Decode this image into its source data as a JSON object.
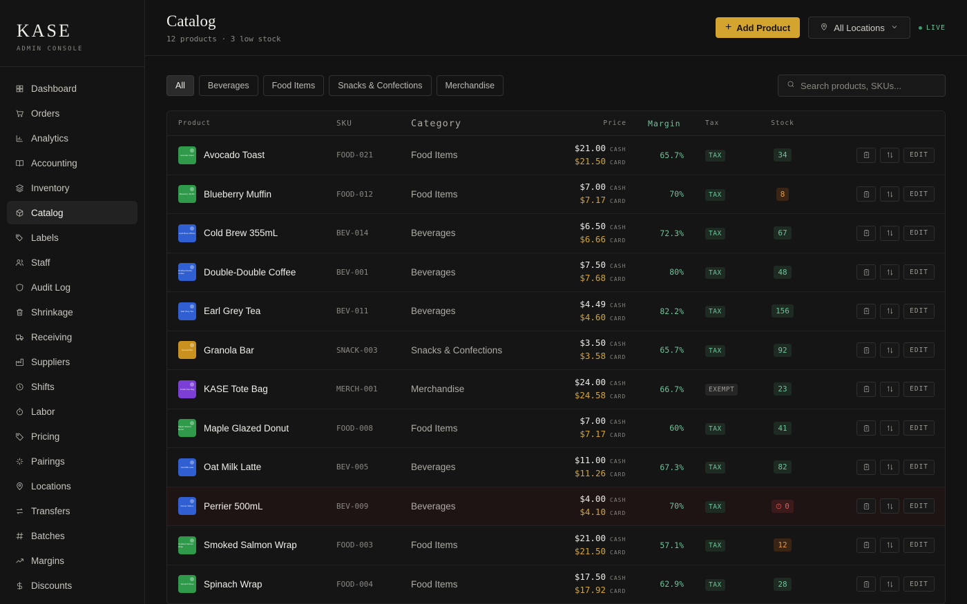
{
  "brand": {
    "name": "KASE",
    "sub": "ADMIN CONSOLE"
  },
  "nav": [
    {
      "label": "Dashboard",
      "icon": "grid-icon",
      "active": false
    },
    {
      "label": "Orders",
      "icon": "cart-icon",
      "active": false
    },
    {
      "label": "Analytics",
      "icon": "bar-chart-icon",
      "active": false
    },
    {
      "label": "Accounting",
      "icon": "book-icon",
      "active": false
    },
    {
      "label": "Inventory",
      "icon": "layers-icon",
      "active": false
    },
    {
      "label": "Catalog",
      "icon": "box-icon",
      "active": true
    },
    {
      "label": "Labels",
      "icon": "tags-icon",
      "active": false
    },
    {
      "label": "Staff",
      "icon": "users-icon",
      "active": false
    },
    {
      "label": "Audit Log",
      "icon": "shield-icon",
      "active": false
    },
    {
      "label": "Shrinkage",
      "icon": "trash-icon",
      "active": false
    },
    {
      "label": "Receiving",
      "icon": "truck-icon",
      "active": false
    },
    {
      "label": "Suppliers",
      "icon": "factory-icon",
      "active": false
    },
    {
      "label": "Shifts",
      "icon": "clock-icon",
      "active": false
    },
    {
      "label": "Labor",
      "icon": "timer-icon",
      "active": false
    },
    {
      "label": "Pricing",
      "icon": "tag-icon",
      "active": false
    },
    {
      "label": "Pairings",
      "icon": "sparkle-icon",
      "active": false
    },
    {
      "label": "Locations",
      "icon": "map-pin-icon",
      "active": false
    },
    {
      "label": "Transfers",
      "icon": "transfer-icon",
      "active": false
    },
    {
      "label": "Batches",
      "icon": "hash-icon",
      "active": false
    },
    {
      "label": "Margins",
      "icon": "trend-icon",
      "active": false
    },
    {
      "label": "Discounts",
      "icon": "dollar-icon",
      "active": false
    }
  ],
  "header": {
    "title": "Catalog",
    "subtitle": "12 products · 3 low stock",
    "add_label": "Add Product",
    "location_label": "All Locations",
    "live_label": "LIVE"
  },
  "filters": [
    {
      "label": "All",
      "active": true
    },
    {
      "label": "Beverages",
      "active": false
    },
    {
      "label": "Food Items",
      "active": false
    },
    {
      "label": "Snacks & Confections",
      "active": false
    },
    {
      "label": "Merchandise",
      "active": false
    }
  ],
  "search": {
    "placeholder": "Search products, SKUs..."
  },
  "table": {
    "columns": [
      "Product",
      "SKU",
      "Category",
      "Price",
      "Margin",
      "Tax",
      "Stock"
    ],
    "cash_label": "CASH",
    "card_label": "CARD",
    "edit_label": "EDIT",
    "rows": [
      {
        "name": "Avocado Toast",
        "sku": "FOOD-021",
        "category": "Food Items",
        "cash": "$21.00",
        "card": "$21.50",
        "margin": "65.7%",
        "tax": "TAX",
        "stock": "34",
        "stock_status": "ok",
        "color": "#2e9a4a",
        "thumb": "Avocado Toast"
      },
      {
        "name": "Blueberry Muffin",
        "sku": "FOOD-012",
        "category": "Food Items",
        "cash": "$7.00",
        "card": "$7.17",
        "margin": "70%",
        "tax": "TAX",
        "stock": "8",
        "stock_status": "low",
        "color": "#2e9a4a",
        "thumb": "Blueberry Muffin"
      },
      {
        "name": "Cold Brew 355mL",
        "sku": "BEV-014",
        "category": "Beverages",
        "cash": "$6.50",
        "card": "$6.66",
        "margin": "72.3%",
        "tax": "TAX",
        "stock": "67",
        "stock_status": "ok",
        "color": "#2f5fd0",
        "thumb": "Cold Brew 355mL"
      },
      {
        "name": "Double-Double Coffee",
        "sku": "BEV-001",
        "category": "Beverages",
        "cash": "$7.50",
        "card": "$7.68",
        "margin": "80%",
        "tax": "TAX",
        "stock": "48",
        "stock_status": "ok",
        "color": "#2f5fd0",
        "thumb": "Double-Double Coffee"
      },
      {
        "name": "Earl Grey Tea",
        "sku": "BEV-011",
        "category": "Beverages",
        "cash": "$4.49",
        "card": "$4.60",
        "margin": "82.2%",
        "tax": "TAX",
        "stock": "156",
        "stock_status": "ok",
        "color": "#2f5fd0",
        "thumb": "Earl Grey Tea"
      },
      {
        "name": "Granola Bar",
        "sku": "SNACK-003",
        "category": "Snacks & Confections",
        "cash": "$3.50",
        "card": "$3.58",
        "margin": "65.7%",
        "tax": "TAX",
        "stock": "92",
        "stock_status": "ok",
        "color": "#c9921e",
        "thumb": "Granola Bar"
      },
      {
        "name": "KASE Tote Bag",
        "sku": "MERCH-001",
        "category": "Merchandise",
        "cash": "$24.00",
        "card": "$24.58",
        "margin": "66.7%",
        "tax": "EXEMPT",
        "stock": "23",
        "stock_status": "ok",
        "color": "#7b3fd6",
        "thumb": "KASE Tote Bag"
      },
      {
        "name": "Maple Glazed Donut",
        "sku": "FOOD-008",
        "category": "Food Items",
        "cash": "$7.00",
        "card": "$7.17",
        "margin": "60%",
        "tax": "TAX",
        "stock": "41",
        "stock_status": "ok",
        "color": "#2e9a4a",
        "thumb": "Maple Glazed Donut"
      },
      {
        "name": "Oat Milk Latte",
        "sku": "BEV-005",
        "category": "Beverages",
        "cash": "$11.00",
        "card": "$11.26",
        "margin": "67.3%",
        "tax": "TAX",
        "stock": "82",
        "stock_status": "ok",
        "color": "#2f5fd0",
        "thumb": "Oat Milk Latte"
      },
      {
        "name": "Perrier 500mL",
        "sku": "BEV-009",
        "category": "Beverages",
        "cash": "$4.00",
        "card": "$4.10",
        "margin": "70%",
        "tax": "TAX",
        "stock": "0",
        "stock_status": "out",
        "color": "#2f5fd0",
        "thumb": "Perrier 500mL"
      },
      {
        "name": "Smoked Salmon Wrap",
        "sku": "FOOD-003",
        "category": "Food Items",
        "cash": "$21.00",
        "card": "$21.50",
        "margin": "57.1%",
        "tax": "TAX",
        "stock": "12",
        "stock_status": "low",
        "color": "#2e9a4a",
        "thumb": "Smoked Salmon Wrap"
      },
      {
        "name": "Spinach Wrap",
        "sku": "FOOD-004",
        "category": "Food Items",
        "cash": "$17.50",
        "card": "$17.92",
        "margin": "62.9%",
        "tax": "TAX",
        "stock": "28",
        "stock_status": "ok",
        "color": "#2e9a4a",
        "thumb": "Spinach Wrap"
      }
    ]
  }
}
